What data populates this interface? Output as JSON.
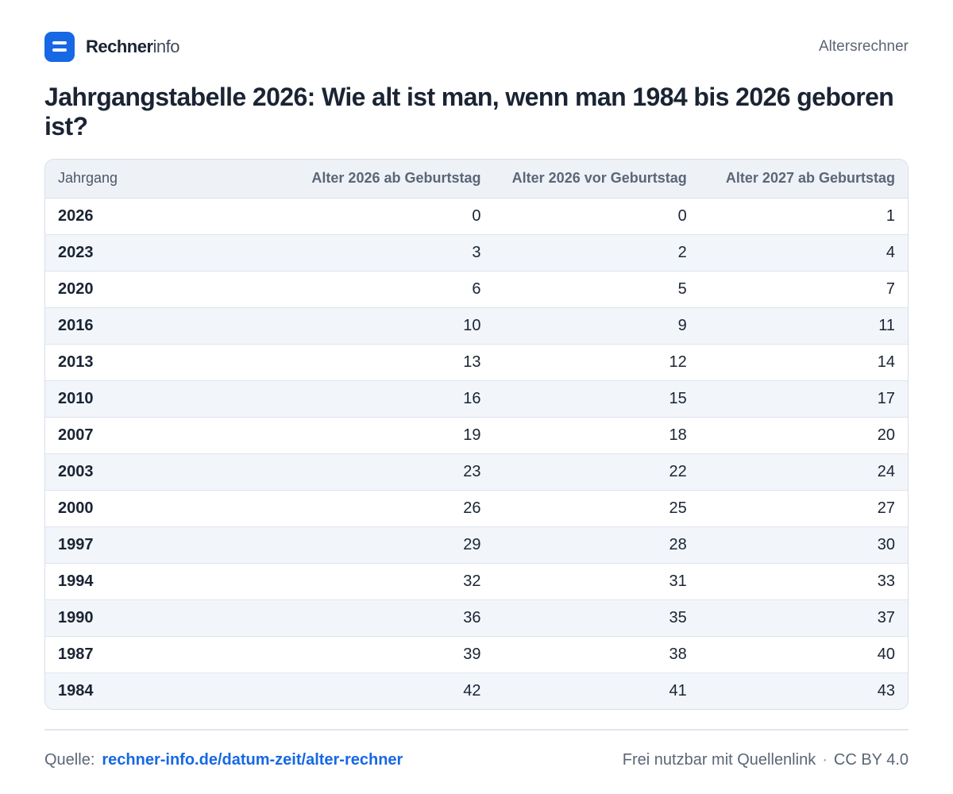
{
  "header": {
    "brand_strong": "Rechner",
    "brand_light": "info",
    "nav_link": "Altersrechner"
  },
  "title": "Jahrgangstabelle 2026: Wie alt ist man, wenn man 1984 bis 2026 geboren ist?",
  "table": {
    "columns": [
      "Jahrgang",
      "Alter 2026 ab Geburtstag",
      "Alter 2026 vor Geburtstag",
      "Alter 2027 ab Geburtstag"
    ],
    "rows": [
      [
        "2026",
        "0",
        "0",
        "1"
      ],
      [
        "2023",
        "3",
        "2",
        "4"
      ],
      [
        "2020",
        "6",
        "5",
        "7"
      ],
      [
        "2016",
        "10",
        "9",
        "11"
      ],
      [
        "2013",
        "13",
        "12",
        "14"
      ],
      [
        "2010",
        "16",
        "15",
        "17"
      ],
      [
        "2007",
        "19",
        "18",
        "20"
      ],
      [
        "2003",
        "23",
        "22",
        "24"
      ],
      [
        "2000",
        "26",
        "25",
        "27"
      ],
      [
        "1997",
        "29",
        "28",
        "30"
      ],
      [
        "1994",
        "32",
        "31",
        "33"
      ],
      [
        "1990",
        "36",
        "35",
        "37"
      ],
      [
        "1987",
        "39",
        "38",
        "40"
      ],
      [
        "1984",
        "42",
        "41",
        "43"
      ]
    ]
  },
  "footer": {
    "source_label": "Quelle:",
    "source_link": "rechner-info.de/datum-zeit/alter-rechner",
    "license_text": "Frei nutzbar mit Quellenlink",
    "separator": "·",
    "license": "CC BY 4.0"
  },
  "colors": {
    "accent": "#1768e5",
    "text": "#1a2433",
    "muted": "#5b6676",
    "row_alt": "#f2f6fb",
    "header_bg": "#eef2f7"
  },
  "icons": {
    "logo": "rechnerinfo-logo-icon"
  }
}
